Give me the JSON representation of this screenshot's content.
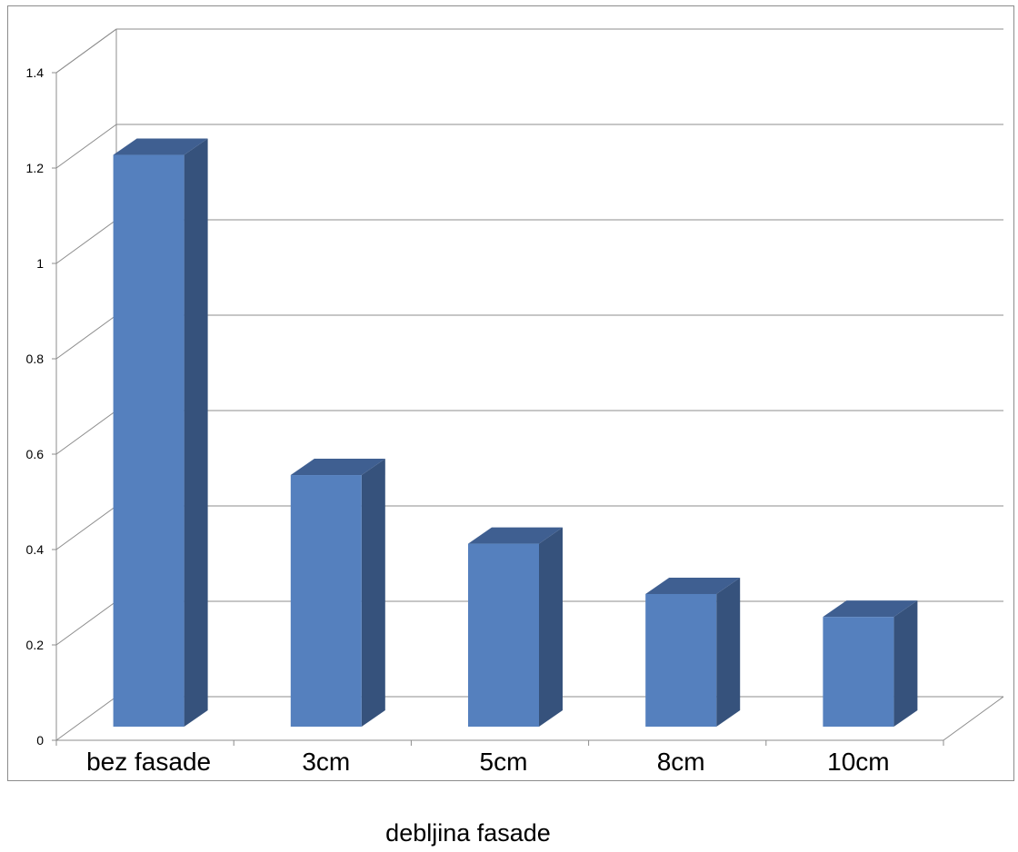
{
  "chart_data": {
    "type": "bar",
    "categories": [
      "bez fasade",
      "3cm",
      "5cm",
      "8cm",
      "10cm"
    ],
    "values": [
      1.25,
      0.55,
      0.4,
      0.29,
      0.24
    ],
    "xlabel": "debljina fasade",
    "ylabel": "",
    "ylim": [
      0,
      1.4
    ],
    "yticks": [
      "0",
      "0.2",
      "0.4",
      "0.6",
      "0.8",
      "1",
      "1.2",
      "1.4"
    ],
    "grid": true,
    "legend": "none",
    "style": "3d-column",
    "colors": {
      "bar_front": "#5580be",
      "bar_side": "#36527c",
      "bar_top": "#3f5f91",
      "grid": "#8c8c8c"
    }
  }
}
